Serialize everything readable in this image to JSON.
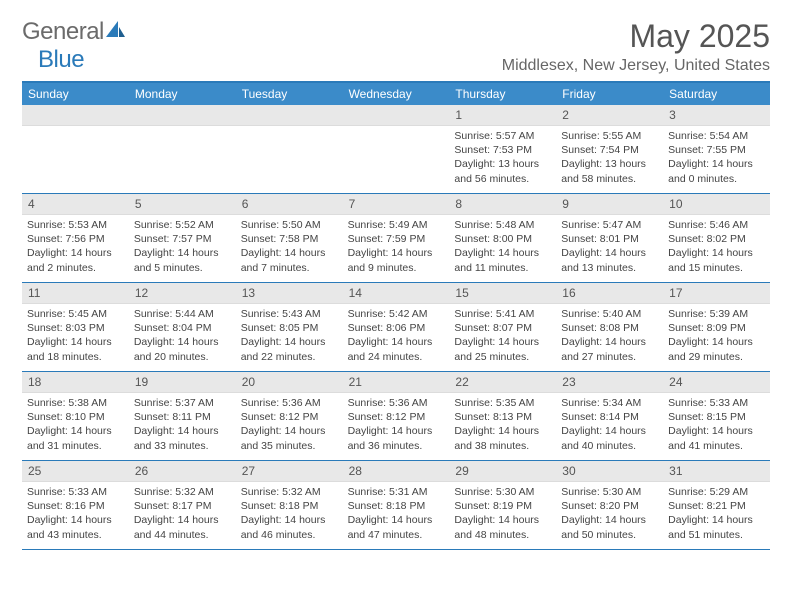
{
  "brand": {
    "part1": "General",
    "part2": "Blue"
  },
  "title": "May 2025",
  "location": "Middlesex, New Jersey, United States",
  "colors": {
    "accent": "#2a7ab9",
    "header_bg": "#3b8bc9",
    "daynum_bg": "#e8e8e8",
    "text": "#444444"
  },
  "days_of_week": [
    "Sunday",
    "Monday",
    "Tuesday",
    "Wednesday",
    "Thursday",
    "Friday",
    "Saturday"
  ],
  "weeks": [
    [
      null,
      null,
      null,
      null,
      {
        "n": "1",
        "sr": "Sunrise: 5:57 AM",
        "ss": "Sunset: 7:53 PM",
        "dl1": "Daylight: 13 hours",
        "dl2": "and 56 minutes."
      },
      {
        "n": "2",
        "sr": "Sunrise: 5:55 AM",
        "ss": "Sunset: 7:54 PM",
        "dl1": "Daylight: 13 hours",
        "dl2": "and 58 minutes."
      },
      {
        "n": "3",
        "sr": "Sunrise: 5:54 AM",
        "ss": "Sunset: 7:55 PM",
        "dl1": "Daylight: 14 hours",
        "dl2": "and 0 minutes."
      }
    ],
    [
      {
        "n": "4",
        "sr": "Sunrise: 5:53 AM",
        "ss": "Sunset: 7:56 PM",
        "dl1": "Daylight: 14 hours",
        "dl2": "and 2 minutes."
      },
      {
        "n": "5",
        "sr": "Sunrise: 5:52 AM",
        "ss": "Sunset: 7:57 PM",
        "dl1": "Daylight: 14 hours",
        "dl2": "and 5 minutes."
      },
      {
        "n": "6",
        "sr": "Sunrise: 5:50 AM",
        "ss": "Sunset: 7:58 PM",
        "dl1": "Daylight: 14 hours",
        "dl2": "and 7 minutes."
      },
      {
        "n": "7",
        "sr": "Sunrise: 5:49 AM",
        "ss": "Sunset: 7:59 PM",
        "dl1": "Daylight: 14 hours",
        "dl2": "and 9 minutes."
      },
      {
        "n": "8",
        "sr": "Sunrise: 5:48 AM",
        "ss": "Sunset: 8:00 PM",
        "dl1": "Daylight: 14 hours",
        "dl2": "and 11 minutes."
      },
      {
        "n": "9",
        "sr": "Sunrise: 5:47 AM",
        "ss": "Sunset: 8:01 PM",
        "dl1": "Daylight: 14 hours",
        "dl2": "and 13 minutes."
      },
      {
        "n": "10",
        "sr": "Sunrise: 5:46 AM",
        "ss": "Sunset: 8:02 PM",
        "dl1": "Daylight: 14 hours",
        "dl2": "and 15 minutes."
      }
    ],
    [
      {
        "n": "11",
        "sr": "Sunrise: 5:45 AM",
        "ss": "Sunset: 8:03 PM",
        "dl1": "Daylight: 14 hours",
        "dl2": "and 18 minutes."
      },
      {
        "n": "12",
        "sr": "Sunrise: 5:44 AM",
        "ss": "Sunset: 8:04 PM",
        "dl1": "Daylight: 14 hours",
        "dl2": "and 20 minutes."
      },
      {
        "n": "13",
        "sr": "Sunrise: 5:43 AM",
        "ss": "Sunset: 8:05 PM",
        "dl1": "Daylight: 14 hours",
        "dl2": "and 22 minutes."
      },
      {
        "n": "14",
        "sr": "Sunrise: 5:42 AM",
        "ss": "Sunset: 8:06 PM",
        "dl1": "Daylight: 14 hours",
        "dl2": "and 24 minutes."
      },
      {
        "n": "15",
        "sr": "Sunrise: 5:41 AM",
        "ss": "Sunset: 8:07 PM",
        "dl1": "Daylight: 14 hours",
        "dl2": "and 25 minutes."
      },
      {
        "n": "16",
        "sr": "Sunrise: 5:40 AM",
        "ss": "Sunset: 8:08 PM",
        "dl1": "Daylight: 14 hours",
        "dl2": "and 27 minutes."
      },
      {
        "n": "17",
        "sr": "Sunrise: 5:39 AM",
        "ss": "Sunset: 8:09 PM",
        "dl1": "Daylight: 14 hours",
        "dl2": "and 29 minutes."
      }
    ],
    [
      {
        "n": "18",
        "sr": "Sunrise: 5:38 AM",
        "ss": "Sunset: 8:10 PM",
        "dl1": "Daylight: 14 hours",
        "dl2": "and 31 minutes."
      },
      {
        "n": "19",
        "sr": "Sunrise: 5:37 AM",
        "ss": "Sunset: 8:11 PM",
        "dl1": "Daylight: 14 hours",
        "dl2": "and 33 minutes."
      },
      {
        "n": "20",
        "sr": "Sunrise: 5:36 AM",
        "ss": "Sunset: 8:12 PM",
        "dl1": "Daylight: 14 hours",
        "dl2": "and 35 minutes."
      },
      {
        "n": "21",
        "sr": "Sunrise: 5:36 AM",
        "ss": "Sunset: 8:12 PM",
        "dl1": "Daylight: 14 hours",
        "dl2": "and 36 minutes."
      },
      {
        "n": "22",
        "sr": "Sunrise: 5:35 AM",
        "ss": "Sunset: 8:13 PM",
        "dl1": "Daylight: 14 hours",
        "dl2": "and 38 minutes."
      },
      {
        "n": "23",
        "sr": "Sunrise: 5:34 AM",
        "ss": "Sunset: 8:14 PM",
        "dl1": "Daylight: 14 hours",
        "dl2": "and 40 minutes."
      },
      {
        "n": "24",
        "sr": "Sunrise: 5:33 AM",
        "ss": "Sunset: 8:15 PM",
        "dl1": "Daylight: 14 hours",
        "dl2": "and 41 minutes."
      }
    ],
    [
      {
        "n": "25",
        "sr": "Sunrise: 5:33 AM",
        "ss": "Sunset: 8:16 PM",
        "dl1": "Daylight: 14 hours",
        "dl2": "and 43 minutes."
      },
      {
        "n": "26",
        "sr": "Sunrise: 5:32 AM",
        "ss": "Sunset: 8:17 PM",
        "dl1": "Daylight: 14 hours",
        "dl2": "and 44 minutes."
      },
      {
        "n": "27",
        "sr": "Sunrise: 5:32 AM",
        "ss": "Sunset: 8:18 PM",
        "dl1": "Daylight: 14 hours",
        "dl2": "and 46 minutes."
      },
      {
        "n": "28",
        "sr": "Sunrise: 5:31 AM",
        "ss": "Sunset: 8:18 PM",
        "dl1": "Daylight: 14 hours",
        "dl2": "and 47 minutes."
      },
      {
        "n": "29",
        "sr": "Sunrise: 5:30 AM",
        "ss": "Sunset: 8:19 PM",
        "dl1": "Daylight: 14 hours",
        "dl2": "and 48 minutes."
      },
      {
        "n": "30",
        "sr": "Sunrise: 5:30 AM",
        "ss": "Sunset: 8:20 PM",
        "dl1": "Daylight: 14 hours",
        "dl2": "and 50 minutes."
      },
      {
        "n": "31",
        "sr": "Sunrise: 5:29 AM",
        "ss": "Sunset: 8:21 PM",
        "dl1": "Daylight: 14 hours",
        "dl2": "and 51 minutes."
      }
    ]
  ]
}
